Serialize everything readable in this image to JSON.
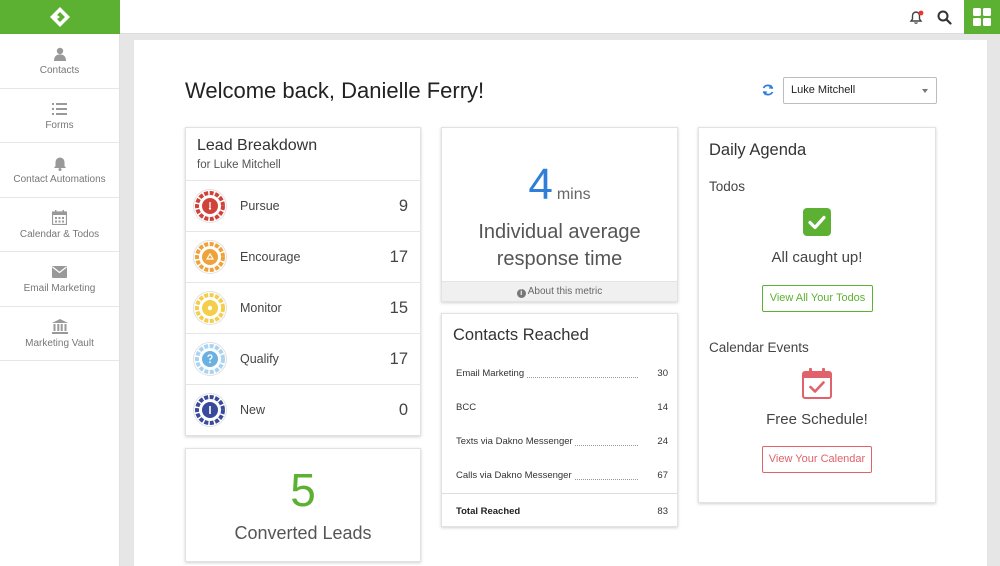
{
  "sidebar": {
    "items": [
      {
        "label": "Contacts",
        "icon": "user-icon"
      },
      {
        "label": "Forms",
        "icon": "list-icon"
      },
      {
        "label": "Contact Automations",
        "icon": "bell-icon"
      },
      {
        "label": "Calendar & Todos",
        "icon": "calendar-icon"
      },
      {
        "label": "Email Marketing",
        "icon": "envelope-icon"
      },
      {
        "label": "Marketing Vault",
        "icon": "bank-icon"
      }
    ]
  },
  "header": {
    "welcome": "Welcome back, Danielle Ferry!",
    "user_select": "Luke Mitchell"
  },
  "lead_breakdown": {
    "title": "Lead Breakdown",
    "subtitle": "for Luke Mitchell",
    "rows": [
      {
        "name": "Pursue",
        "count": "9",
        "color": "#d0433a"
      },
      {
        "name": "Encourage",
        "count": "17",
        "color": "#f0a23a"
      },
      {
        "name": "Monitor",
        "count": "15",
        "color": "#f4cd4a"
      },
      {
        "name": "Qualify",
        "count": "17",
        "color": "#6ab0e0"
      },
      {
        "name": "New",
        "count": "0",
        "color": "#3a4a9a"
      }
    ]
  },
  "converted": {
    "value": "5",
    "label": "Converted Leads",
    "color": "#5db132"
  },
  "response": {
    "value": "4",
    "unit": "mins",
    "label_line1": "Individual average",
    "label_line2": "response time",
    "about": "About this metric",
    "color": "#2f7fd9"
  },
  "contacts_reached": {
    "title": "Contacts Reached",
    "rows": [
      {
        "label": "Email Marketing",
        "value": "30"
      },
      {
        "label": "BCC",
        "value": "14"
      },
      {
        "label": "Texts via Dakno Messenger",
        "value": "24"
      },
      {
        "label": "Calls via Dakno Messenger",
        "value": "67"
      }
    ],
    "total_label": "Total Reached",
    "total_value": "83"
  },
  "agenda": {
    "title": "Daily Agenda",
    "todos_heading": "Todos",
    "todos_message": "All caught up!",
    "todos_button": "View All Your Todos",
    "events_heading": "Calendar Events",
    "events_message": "Free Schedule!",
    "events_button": "View Your Calendar",
    "green": "#5db132",
    "red": "#e0626a"
  }
}
